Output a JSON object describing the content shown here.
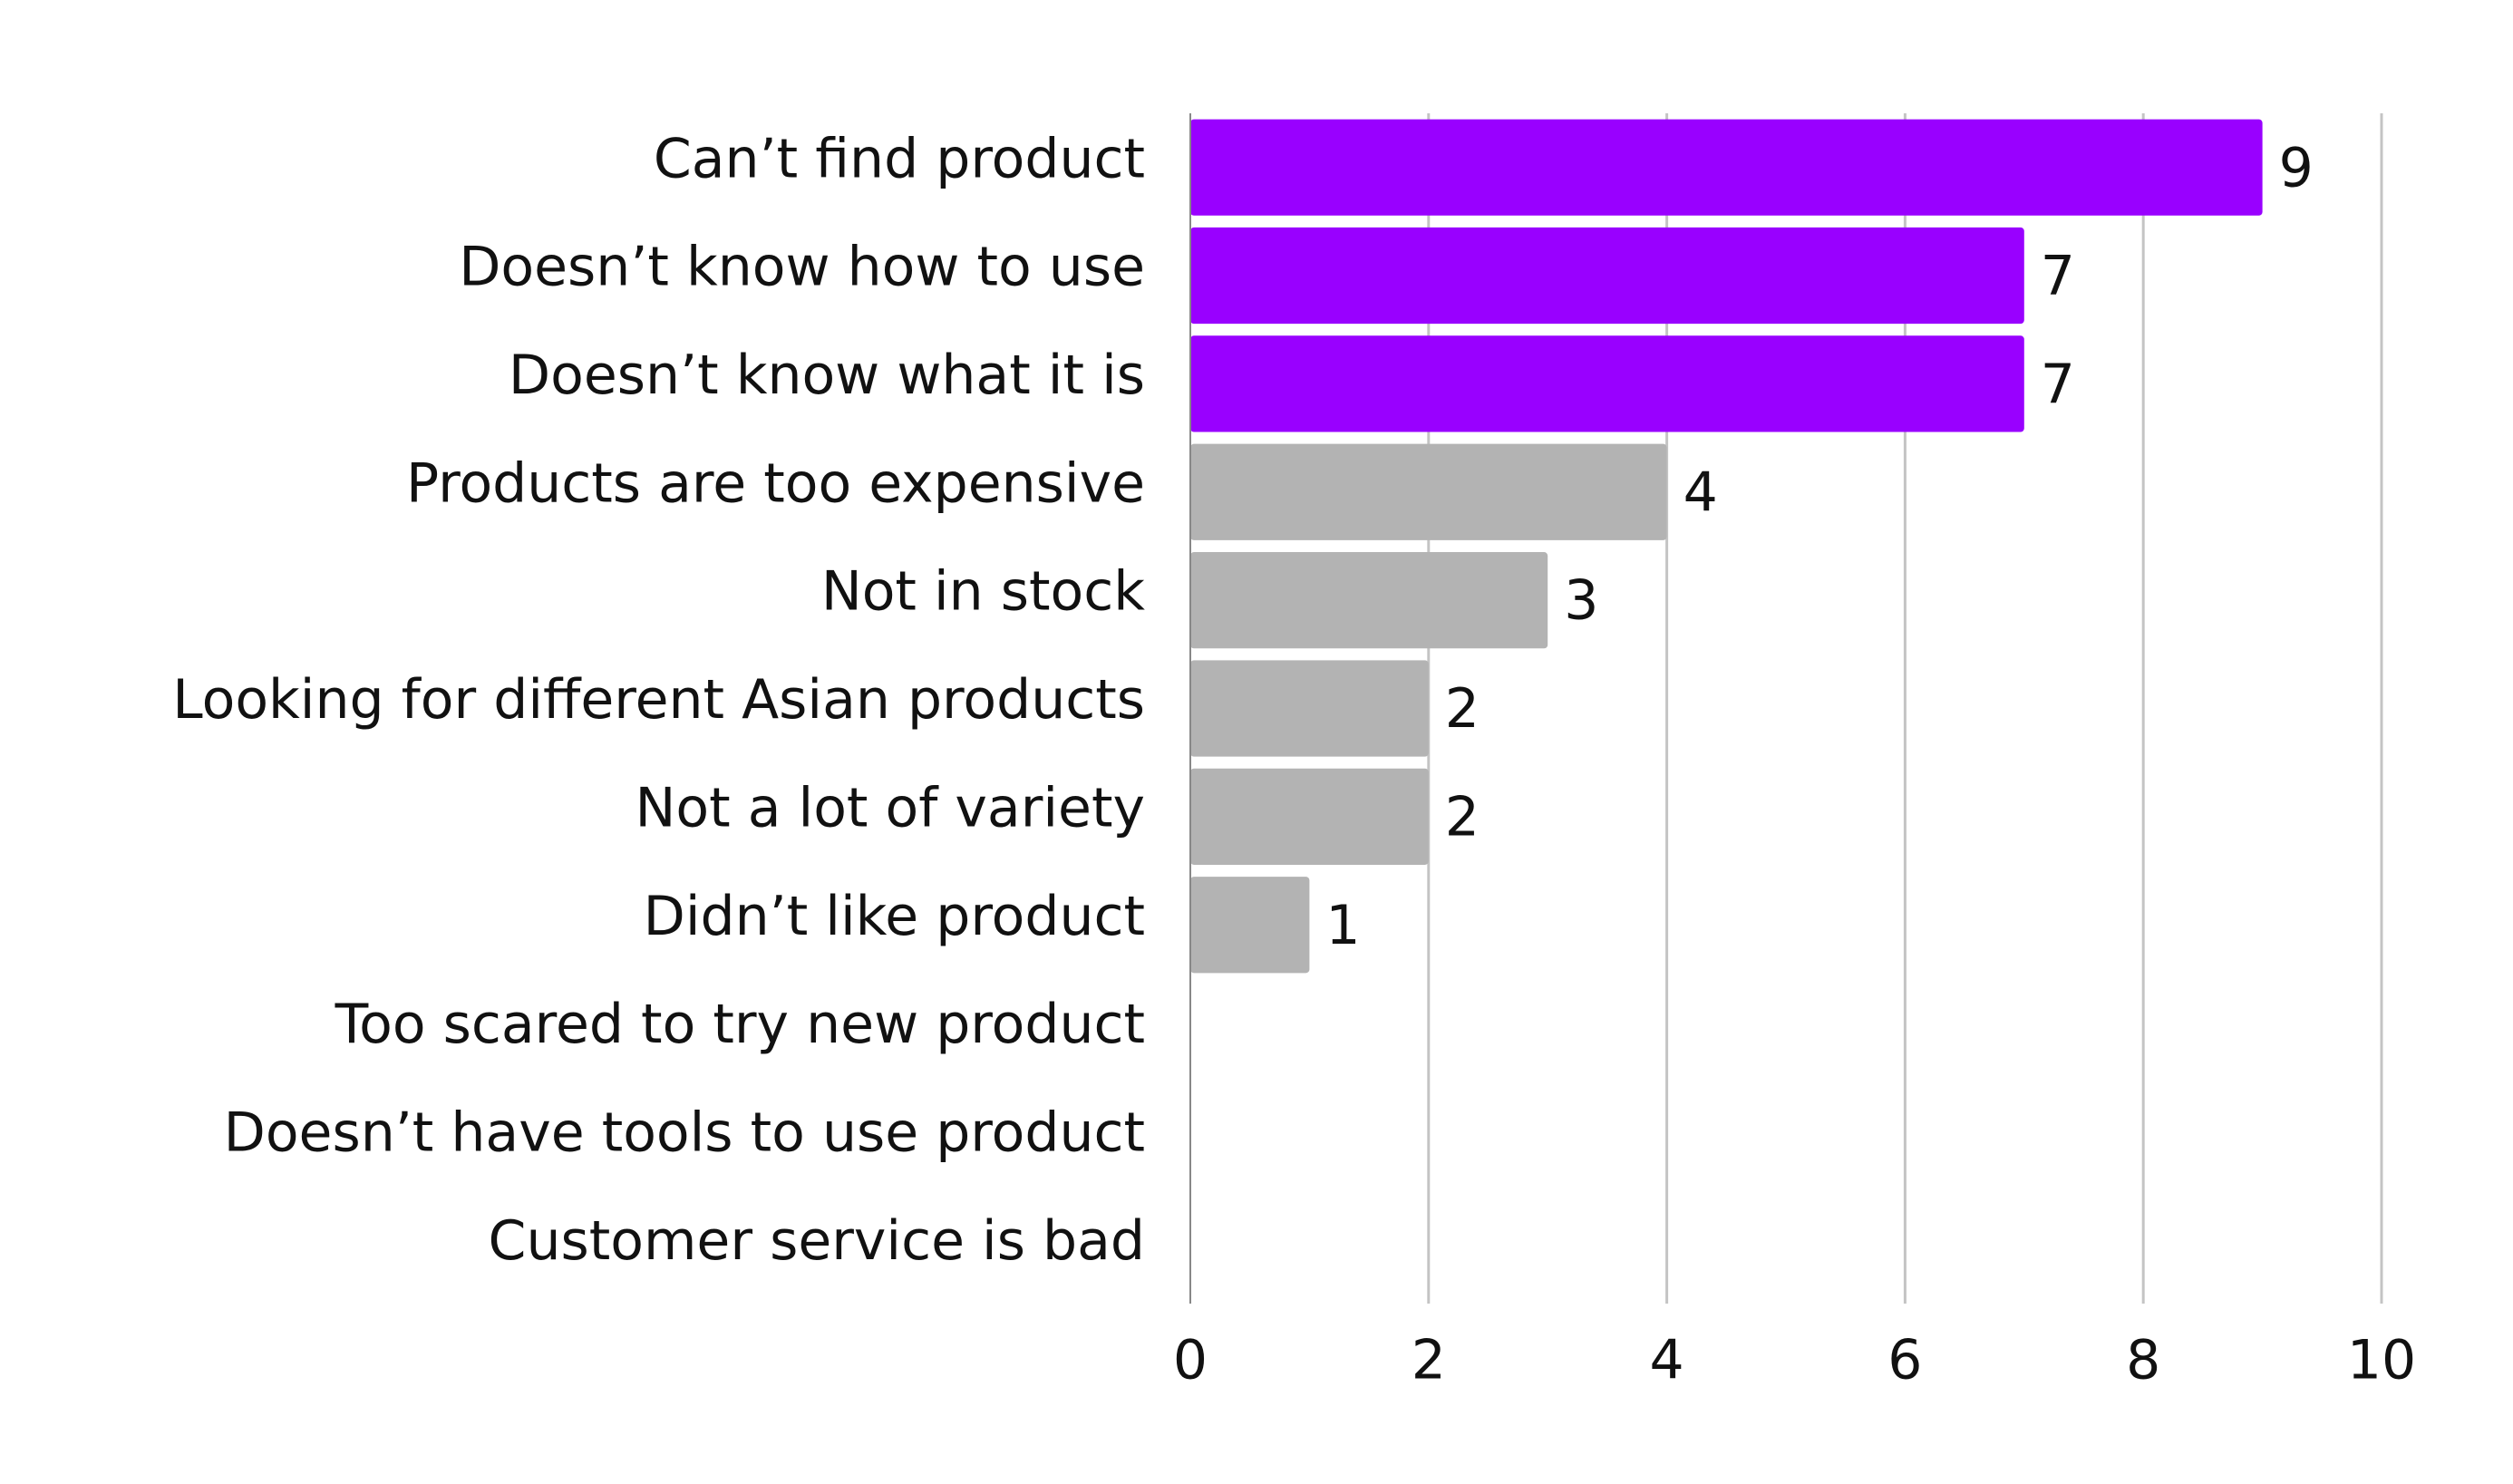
{
  "chart_data": {
    "type": "barh",
    "categories": [
      "Can’t find product",
      "Doesn’t know how to use",
      "Doesn’t know what it is",
      "Products are too expensive",
      "Not in stock",
      "Looking for different Asian products",
      "Not a lot of variety",
      "Didn’t like product",
      "Too scared to try new product",
      "Doesn’t have tools to use product",
      "Customer service is bad"
    ],
    "values": [
      9,
      7,
      7,
      4,
      3,
      2,
      2,
      1,
      0,
      0,
      0
    ],
    "colors": [
      "#9900ff",
      "#9900ff",
      "#9900ff",
      "#b3b3b3",
      "#b3b3b3",
      "#b3b3b3",
      "#b3b3b3",
      "#b3b3b3",
      "#b3b3b3",
      "#b3b3b3",
      "#b3b3b3"
    ],
    "xlim": [
      0,
      10
    ],
    "xticks": [
      0,
      2,
      4,
      6,
      8,
      10
    ],
    "grid": true
  }
}
